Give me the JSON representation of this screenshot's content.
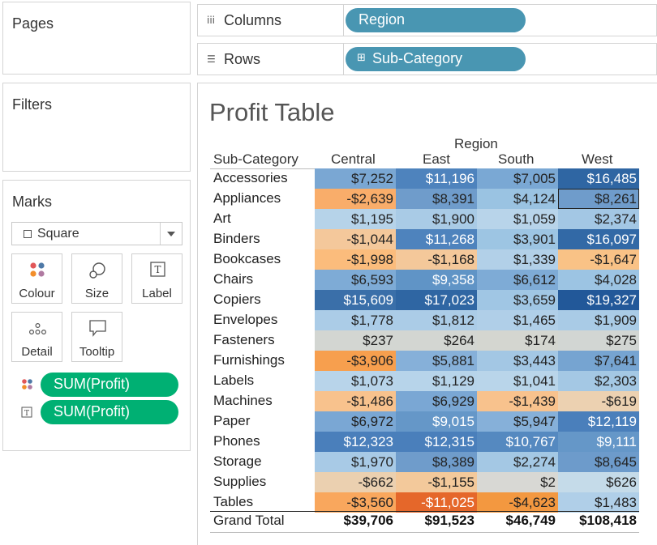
{
  "pages": {
    "title": "Pages"
  },
  "filters": {
    "title": "Filters"
  },
  "marks": {
    "title": "Marks",
    "mark_type": "Square",
    "cards": [
      {
        "label": "Colour",
        "icon": "colour-dots-icon"
      },
      {
        "label": "Size",
        "icon": "size-circles-icon"
      },
      {
        "label": "Label",
        "icon": "label-t-icon"
      },
      {
        "label": "Detail",
        "icon": "detail-dots-icon"
      },
      {
        "label": "Tooltip",
        "icon": "tooltip-speech-icon"
      }
    ],
    "pills": [
      {
        "label": "SUM(Profit)",
        "icon": "colour-dots-icon"
      },
      {
        "label": "SUM(Profit)",
        "icon": "label-t-icon"
      }
    ]
  },
  "columns": {
    "label": "Columns",
    "icon": "columns-icon",
    "pill": "Region"
  },
  "rows": {
    "label": "Rows",
    "icon": "rows-icon",
    "pill": "Sub-Category",
    "pill_icon": "expand-plus-icon"
  },
  "viz": {
    "title": "Profit Table",
    "column_group": "Region",
    "row_header": "Sub-Category",
    "columns": [
      "Central",
      "East",
      "South",
      "West"
    ],
    "rows": [
      {
        "label": "Accessories",
        "values": [
          "$7,252",
          "$11,196",
          "$7,005",
          "$16,485"
        ],
        "colors": [
          "#7aa7d3",
          "#4e83bd",
          "#7aa8d4",
          "#2f66a3"
        ]
      },
      {
        "label": "Appliances",
        "values": [
          "-$2,639",
          "$8,391",
          "$4,124",
          "$8,261"
        ],
        "colors": [
          "#f9ad6a",
          "#6f9ccb",
          "#9ac3e2",
          "#6f9ccb"
        ]
      },
      {
        "label": "Art",
        "values": [
          "$1,195",
          "$1,900",
          "$1,059",
          "$2,374"
        ],
        "colors": [
          "#b6d3e9",
          "#a9cbe6",
          "#b8d4ea",
          "#a3c7e4"
        ]
      },
      {
        "label": "Binders",
        "values": [
          "-$1,044",
          "$11,268",
          "$3,901",
          "$16,097"
        ],
        "colors": [
          "#f4c89b",
          "#4e83bd",
          "#9dc5e3",
          "#3269a6"
        ]
      },
      {
        "label": "Bookcases",
        "values": [
          "-$1,998",
          "-$1,168",
          "$1,339",
          "-$1,647"
        ],
        "colors": [
          "#fbbc7c",
          "#f4c89a",
          "#b2d0e8",
          "#f9c286"
        ]
      },
      {
        "label": "Chairs",
        "values": [
          "$6,593",
          "$9,358",
          "$6,612",
          "$4,028"
        ],
        "colors": [
          "#7eabd6",
          "#6094c6",
          "#7eabd6",
          "#9cc4e3"
        ]
      },
      {
        "label": "Copiers",
        "values": [
          "$15,609",
          "$17,023",
          "$3,659",
          "$19,327"
        ],
        "colors": [
          "#3a6fa9",
          "#2f66a3",
          "#a0c6e4",
          "#225899"
        ]
      },
      {
        "label": "Envelopes",
        "values": [
          "$1,778",
          "$1,812",
          "$1,465",
          "$1,909"
        ],
        "colors": [
          "#abcce7",
          "#abcce7",
          "#b0cfe8",
          "#a9cbe6"
        ]
      },
      {
        "label": "Fasteners",
        "values": [
          "$237",
          "$264",
          "$174",
          "$275"
        ],
        "colors": [
          "#d3d6d2",
          "#d3d6d2",
          "#d4d6d0",
          "#d2d6d3"
        ]
      },
      {
        "label": "Furnishings",
        "values": [
          "-$3,906",
          "$5,881",
          "$3,443",
          "$7,641"
        ],
        "colors": [
          "#f79f4e",
          "#86b0d9",
          "#a3c7e4",
          "#76a4d1"
        ]
      },
      {
        "label": "Labels",
        "values": [
          "$1,073",
          "$1,129",
          "$1,041",
          "$2,303"
        ],
        "colors": [
          "#b8d4ea",
          "#b7d4ea",
          "#b9d5ea",
          "#a4c8e4"
        ]
      },
      {
        "label": "Machines",
        "values": [
          "-$1,486",
          "$6,929",
          "-$1,439",
          "-$619"
        ],
        "colors": [
          "#f8c28d",
          "#7aa7d4",
          "#f8c28d",
          "#ecd1b1"
        ]
      },
      {
        "label": "Paper",
        "values": [
          "$6,972",
          "$9,015",
          "$5,947",
          "$12,119"
        ],
        "colors": [
          "#7aa7d4",
          "#6597c8",
          "#86b0d9",
          "#4a7fbb"
        ]
      },
      {
        "label": "Phones",
        "values": [
          "$12,323",
          "$12,315",
          "$10,767",
          "$9,111"
        ],
        "colors": [
          "#4a7fbb",
          "#4a7fbb",
          "#5589c0",
          "#6597c8"
        ]
      },
      {
        "label": "Storage",
        "values": [
          "$1,970",
          "$8,389",
          "$2,274",
          "$8,645"
        ],
        "colors": [
          "#a8cae6",
          "#6f9ccb",
          "#a4c8e4",
          "#6d9bcb"
        ]
      },
      {
        "label": "Supplies",
        "values": [
          "-$662",
          "-$1,155",
          "$2",
          "$626"
        ],
        "colors": [
          "#ebd0b0",
          "#f3c99b",
          "#d8d8d4",
          "#c5dbe9"
        ]
      },
      {
        "label": "Tables",
        "values": [
          "-$3,560",
          "-$11,025",
          "-$4,623",
          "$1,483"
        ],
        "colors": [
          "#f9a75d",
          "#e5672a",
          "#f39840",
          "#b0cfe8"
        ]
      }
    ],
    "selected_cell": {
      "row": 1,
      "col": 3
    },
    "light_text_colors": {
      "dark_fill_text": "#ffffff",
      "normal_text": "#222222"
    },
    "grand_total": {
      "label": "Grand Total",
      "values": [
        "$39,706",
        "$91,523",
        "$46,749",
        "$108,418"
      ]
    }
  }
}
